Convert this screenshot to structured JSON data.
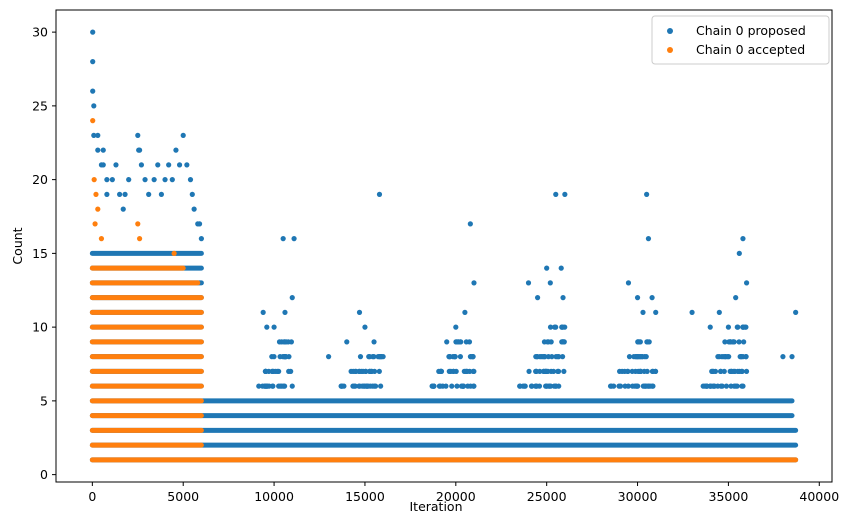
{
  "chart_data": {
    "type": "scatter",
    "title": "",
    "xlabel": "Iteration",
    "ylabel": "Count",
    "xlim": [
      -2000,
      40700
    ],
    "ylim": [
      -0.5,
      31.5
    ],
    "xticks": [
      0,
      5000,
      10000,
      15000,
      20000,
      25000,
      30000,
      35000,
      40000
    ],
    "yticks": [
      0,
      5,
      10,
      15,
      20,
      25,
      30
    ],
    "grid": false,
    "legend_position": "top-right",
    "series": [
      {
        "name": "Chain 0 proposed",
        "color": "#1f77b4",
        "x": [
          20,
          20,
          20,
          80,
          80,
          300,
          300,
          500,
          600,
          600,
          800,
          800,
          1100,
          1300,
          1500,
          1700,
          1800,
          2000,
          2500,
          2550,
          2600,
          2700,
          2900,
          3100,
          3400,
          3600,
          3800,
          4000,
          4200,
          4400,
          4600,
          4800,
          5000,
          5200,
          5400,
          5500,
          5600,
          5800,
          5900,
          6000,
          9400,
          9600,
          10000,
          10500,
          10600,
          11000,
          11100,
          13000,
          14000,
          14700,
          15000,
          15500,
          15800,
          16000,
          19500,
          20000,
          20500,
          20800,
          21000,
          24000,
          24500,
          25000,
          25200,
          25500,
          25800,
          25900,
          26000,
          29500,
          30000,
          30300,
          30500,
          30600,
          30800,
          31000,
          33000,
          34000,
          34500,
          35000,
          35400,
          35600,
          35800,
          36000,
          38000,
          38500,
          38700
        ],
        "y": [
          30,
          28,
          26,
          25,
          23,
          23,
          22,
          21,
          22,
          21,
          20,
          19,
          20,
          21,
          19,
          18,
          19,
          20,
          23,
          22,
          22,
          21,
          20,
          19,
          20,
          21,
          19,
          20,
          21,
          20,
          22,
          21,
          23,
          21,
          20,
          19,
          18,
          17,
          17,
          16,
          11,
          10,
          10,
          16,
          11,
          12,
          16,
          8,
          9,
          11,
          10,
          9,
          19,
          8,
          9,
          10,
          11,
          17,
          13,
          13,
          12,
          14,
          13,
          19,
          14,
          12,
          19,
          13,
          12,
          11,
          19,
          16,
          12,
          11,
          11,
          10,
          11,
          10,
          12,
          15,
          16,
          13,
          8,
          8,
          11
        ],
        "bands": [
          {
            "y": 1,
            "x_start": 0,
            "x_end": 38700
          },
          {
            "y": 2,
            "x_start": 0,
            "x_end": 38700
          },
          {
            "y": 3,
            "x_start": 0,
            "x_end": 38700
          },
          {
            "y": 4,
            "x_start": 0,
            "x_end": 38500
          },
          {
            "y": 5,
            "x_start": 0,
            "x_end": 38500
          },
          {
            "y": 6,
            "x_start": 0,
            "x_end": 6000
          },
          {
            "y": 7,
            "x_start": 0,
            "x_end": 6000
          },
          {
            "y": 8,
            "x_start": 0,
            "x_end": 6000
          },
          {
            "y": 9,
            "x_start": 0,
            "x_end": 6000
          },
          {
            "y": 10,
            "x_start": 0,
            "x_end": 6000
          },
          {
            "y": 11,
            "x_start": 0,
            "x_end": 6000
          },
          {
            "y": 12,
            "x_start": 0,
            "x_end": 6000
          },
          {
            "y": 13,
            "x_start": 0,
            "x_end": 6000
          },
          {
            "y": 14,
            "x_start": 0,
            "x_end": 6000
          },
          {
            "y": 15,
            "x_start": 0,
            "x_end": 6000
          }
        ],
        "clusters": [
          {
            "x_start": 9000,
            "x_end": 11000,
            "max_y": 9
          },
          {
            "x_start": 13500,
            "x_end": 16000,
            "max_y": 8
          },
          {
            "x_start": 18500,
            "x_end": 21000,
            "max_y": 9
          },
          {
            "x_start": 23500,
            "x_end": 26000,
            "max_y": 10
          },
          {
            "x_start": 28500,
            "x_end": 31000,
            "max_y": 9
          },
          {
            "x_start": 33500,
            "x_end": 36000,
            "max_y": 10
          }
        ]
      },
      {
        "name": "Chain 0 accepted",
        "color": "#ff7f0e",
        "x": [
          20,
          100,
          200,
          300,
          150,
          500,
          2500,
          2600,
          4500
        ],
        "y": [
          24,
          20,
          19,
          18,
          17,
          16,
          17,
          16,
          15
        ],
        "bands": [
          {
            "y": 1,
            "x_start": 0,
            "x_end": 38700
          },
          {
            "y": 2,
            "x_start": 0,
            "x_end": 6000
          },
          {
            "y": 3,
            "x_start": 0,
            "x_end": 6000
          },
          {
            "y": 4,
            "x_start": 0,
            "x_end": 6000
          },
          {
            "y": 5,
            "x_start": 0,
            "x_end": 6000
          },
          {
            "y": 6,
            "x_start": 0,
            "x_end": 6000
          },
          {
            "y": 7,
            "x_start": 0,
            "x_end": 6000
          },
          {
            "y": 8,
            "x_start": 0,
            "x_end": 6000
          },
          {
            "y": 9,
            "x_start": 0,
            "x_end": 6000
          },
          {
            "y": 10,
            "x_start": 0,
            "x_end": 6000
          },
          {
            "y": 11,
            "x_start": 0,
            "x_end": 6000
          },
          {
            "y": 12,
            "x_start": 0,
            "x_end": 6000
          },
          {
            "y": 13,
            "x_start": 0,
            "x_end": 5800
          },
          {
            "y": 14,
            "x_start": 0,
            "x_end": 5000
          }
        ]
      }
    ]
  }
}
